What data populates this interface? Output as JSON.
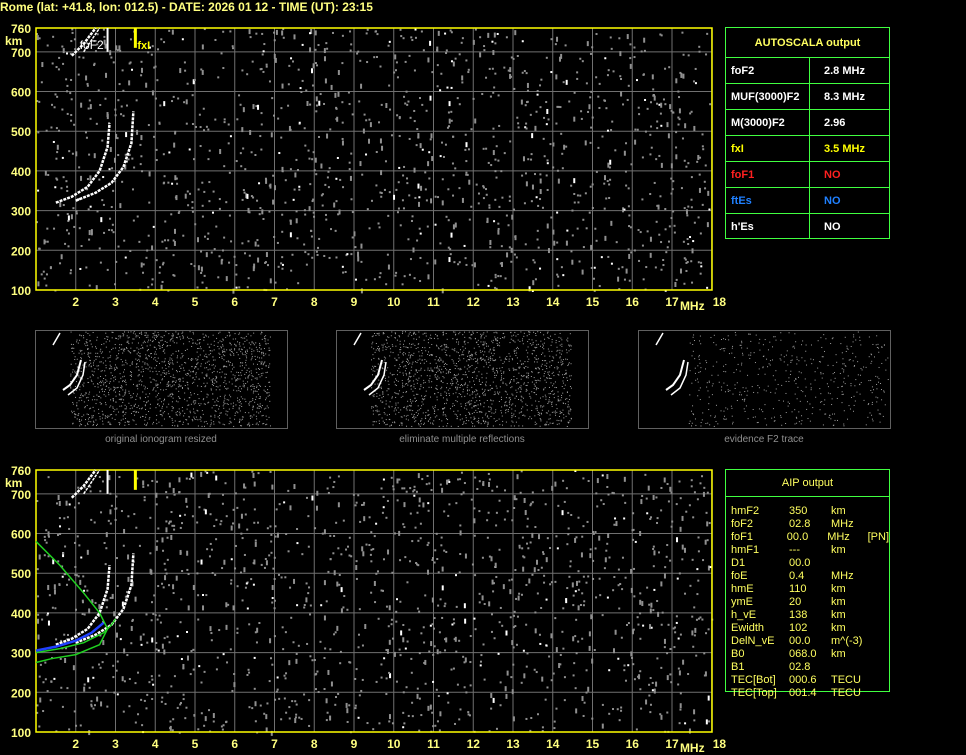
{
  "title": "Rome (lat: +41.8, lon: 012.5) - DATE: 2026 01 12 - TIME (UT): 23:15",
  "colors": {
    "axis": "#ffff00",
    "grid": "#808080",
    "panel_border": "#40ff40",
    "label": "#ffff80",
    "fof1": "#ff2020",
    "ftes": "#2080ff",
    "model": "#20d020",
    "profile": "#2040ff"
  },
  "axes": {
    "y_unit": "km",
    "x_unit": "MHz",
    "y_ticks": [
      "760",
      "700",
      "600",
      "500",
      "400",
      "300",
      "200",
      "100"
    ],
    "x_ticks": [
      "2",
      "3",
      "4",
      "5",
      "6",
      "7",
      "8",
      "9",
      "10",
      "11",
      "12",
      "13",
      "14",
      "15",
      "16",
      "17",
      "18"
    ]
  },
  "markers": {
    "fof2": "foF2",
    "fxi": "fxI"
  },
  "autoscala": {
    "title": "AUTOSCALA output",
    "rows": [
      {
        "key": "foF2",
        "value": "2.8 MHz",
        "color": "#ffffff"
      },
      {
        "key": "MUF(3000)F2",
        "value": "8.3 MHz",
        "color": "#ffffff"
      },
      {
        "key": "M(3000)F2",
        "value": "2.96",
        "color": "#ffffff"
      },
      {
        "key": "fxI",
        "value": "3.5 MHz",
        "color": "#ffff00"
      },
      {
        "key": "foF1",
        "value": "NO",
        "color": "#ff2020"
      },
      {
        "key": "ftEs",
        "value": "NO",
        "color": "#2080ff"
      },
      {
        "key": "h'Es",
        "value": "NO",
        "color": "#ffffff"
      }
    ]
  },
  "thumbnails": [
    {
      "caption": "original ionogram resized"
    },
    {
      "caption": "eliminate multiple reflections"
    },
    {
      "caption": "evidence F2 trace"
    }
  ],
  "aip": {
    "title": "AIP output",
    "rows": [
      [
        "hmF2",
        "350",
        "km",
        ""
      ],
      [
        "foF2",
        "02.8",
        "MHz",
        ""
      ],
      [
        "foF1",
        "00.0",
        "MHz",
        "[PN]"
      ],
      [
        "hmF1",
        "---",
        "km",
        ""
      ],
      [
        "D1",
        "00.0",
        "",
        ""
      ],
      [
        "foE",
        "0.4",
        "MHz",
        ""
      ],
      [
        "hmE",
        "110",
        "km",
        ""
      ],
      [
        "ymE",
        "20",
        "km",
        ""
      ],
      [
        "h_vE",
        "138",
        "km",
        ""
      ],
      [
        "Ewidth",
        "102",
        "km",
        ""
      ],
      [
        "DelN_vE",
        "00.0",
        "m^(-3)",
        ""
      ],
      [
        "B0",
        "068.0",
        "km",
        ""
      ],
      [
        "B1",
        "02.8",
        "",
        ""
      ],
      [
        "TEC[Bot]",
        "000.6",
        "TECU",
        ""
      ],
      [
        "TEC[Top]",
        "001.4",
        "TECU",
        ""
      ]
    ]
  }
}
